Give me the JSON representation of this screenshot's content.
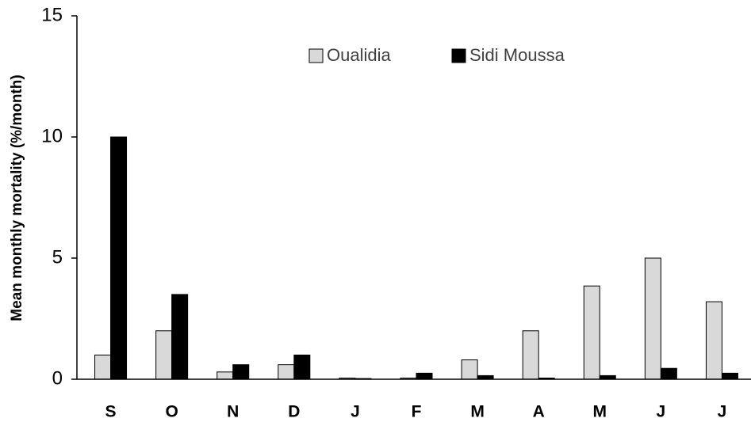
{
  "chart_data": {
    "type": "bar",
    "y_label": "Mean monthly mortality (%/month)",
    "categories": [
      "S",
      "O",
      "N",
      "D",
      "J",
      "F",
      "M",
      "A",
      "M",
      "J",
      "J"
    ],
    "series": [
      {
        "name": "Oualidia",
        "color": "#d9d9d9",
        "values": [
          1.0,
          2.0,
          0.3,
          0.6,
          0.05,
          0.05,
          0.8,
          2.0,
          3.85,
          5.0,
          3.2
        ]
      },
      {
        "name": "Sidi Moussa",
        "color": "#000000",
        "values": [
          10.0,
          3.5,
          0.6,
          1.0,
          0.03,
          0.25,
          0.15,
          0.05,
          0.15,
          0.45,
          0.25
        ]
      }
    ],
    "ylim": [
      0,
      15
    ],
    "yticks": [
      0,
      5,
      10,
      15
    ],
    "grid": false
  }
}
